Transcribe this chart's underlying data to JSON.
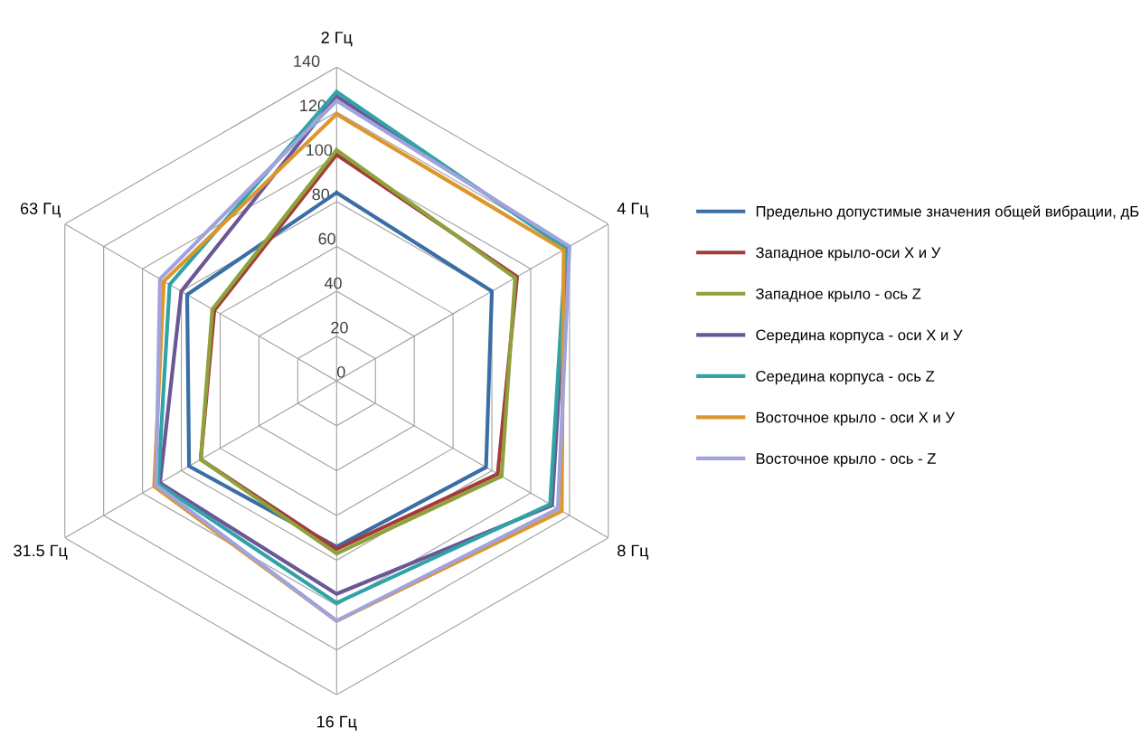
{
  "chart_data": {
    "type": "radar",
    "categories": [
      "2 Гц",
      "4 Гц",
      "8 Гц",
      "16 Гц",
      "31.5 Гц",
      "63 Гц"
    ],
    "ylim": [
      0,
      140
    ],
    "yticks": [
      0,
      20,
      40,
      60,
      80,
      100,
      120,
      140
    ],
    "grid": true,
    "legend": "right",
    "series": [
      {
        "name": "Предельно допустимые значения общей вибрации, дБ",
        "color": "#3a6ea5",
        "values": [
          84,
          80,
          77,
          74,
          76,
          77
        ]
      },
      {
        "name": "Западное крыло-оси X и У",
        "color": "#a33b3a",
        "values": [
          101,
          93,
          83,
          75,
          70,
          63
        ]
      },
      {
        "name": "Западное крыло - ось Z",
        "color": "#8ea13b",
        "values": [
          103,
          92,
          85,
          77,
          70,
          64
        ]
      },
      {
        "name": "Середина корпуса - оси X и У",
        "color": "#6a5796",
        "values": [
          127,
          119,
          111,
          95,
          91,
          80
        ]
      },
      {
        "name": "Середина корпуса - ось Z",
        "color": "#31a3a6",
        "values": [
          129,
          118,
          110,
          99,
          92,
          86
        ]
      },
      {
        "name": "Восточное крыло - оси X и У",
        "color": "#dc962e",
        "values": [
          119,
          117,
          116,
          107,
          94,
          89
        ]
      },
      {
        "name": "Восточное крыло - ось - Z",
        "color": "#a0a3dc",
        "values": [
          125,
          120,
          114,
          107,
          93,
          91
        ]
      }
    ]
  }
}
